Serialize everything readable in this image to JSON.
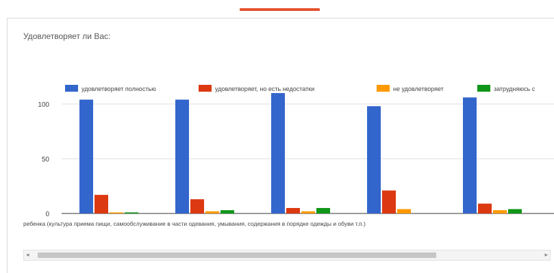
{
  "question": {
    "title": "Удовлетворяет ли Вас:"
  },
  "chart_data": {
    "type": "bar",
    "categories": [
      "",
      "",
      "",
      "",
      ""
    ],
    "visible_category_label": "ребенка (культура приема пищи, самообслуживание в части одевания, умывания, содержания в порядке одежды и обуви т.п.)",
    "series": [
      {
        "name": "удовлетворяет полностью",
        "color": "#3366cc",
        "values": [
          104,
          104,
          110,
          98,
          106
        ]
      },
      {
        "name": "удовлетворяет, но есть недостатки",
        "color": "#dc3912",
        "values": [
          17,
          13,
          5,
          21,
          9
        ]
      },
      {
        "name": "не удовлетворяет",
        "color": "#ff9900",
        "values": [
          1,
          2,
          2,
          4,
          3
        ]
      },
      {
        "name": "затрудняюсь с",
        "color": "#109618",
        "values": [
          1,
          3,
          5,
          0,
          4
        ]
      }
    ],
    "yticks": [
      0,
      50,
      100
    ],
    "ylim": [
      0,
      115
    ],
    "legend_position": "top",
    "grid": true
  },
  "scrollbar": {
    "left_arrow": "◂",
    "right_arrow": "▸"
  }
}
